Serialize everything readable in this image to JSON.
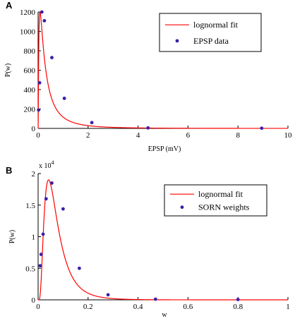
{
  "chart_data": [
    {
      "panel": "A",
      "type": "scatter",
      "xlabel": "EPSP (mV)",
      "ylabel": "P(w)",
      "xlim": [
        0,
        10
      ],
      "ylim": [
        0,
        1200
      ],
      "xticks": [
        0,
        2,
        4,
        6,
        8,
        10
      ],
      "yticks": [
        0,
        200,
        400,
        600,
        800,
        1000,
        1200
      ],
      "grid": false,
      "legend_position": "top-right",
      "fit": {
        "name": "lognormal fit",
        "color": "#ff0000",
        "mu": -1.15,
        "sigma": 1.2,
        "peak": 1200
      },
      "series": [
        {
          "name": "EPSP data",
          "color": "#3b1fa8",
          "x": [
            0.02,
            0.06,
            0.15,
            0.25,
            0.55,
            1.05,
            2.15,
            4.4,
            8.95
          ],
          "y": [
            190,
            470,
            1200,
            1110,
            730,
            310,
            60,
            5,
            2
          ]
        }
      ]
    },
    {
      "panel": "B",
      "type": "scatter",
      "xlabel": "w",
      "ylabel": "P(w)",
      "xlim": [
        0,
        1
      ],
      "ylim": [
        0,
        2
      ],
      "y_exponent": "x 10",
      "y_exponent_power": "4",
      "xticks": [
        0,
        0.2,
        0.4,
        0.6,
        0.8,
        1
      ],
      "yticks": [
        0,
        0.5,
        1,
        1.5,
        2
      ],
      "grid": false,
      "legend_position": "top-right",
      "fit": {
        "name": "lognormal fit",
        "color": "#ff0000",
        "mu": -2.75,
        "sigma": 0.65,
        "peak": 1.9
      },
      "series": [
        {
          "name": "SORN weights",
          "color": "#3b1fa8",
          "x": [
            0.008,
            0.012,
            0.02,
            0.032,
            0.055,
            0.1,
            0.165,
            0.28,
            0.47,
            0.8
          ],
          "y": [
            0.54,
            0.72,
            1.04,
            1.6,
            1.85,
            1.44,
            0.5,
            0.08,
            0.01,
            0.005
          ]
        }
      ]
    }
  ]
}
